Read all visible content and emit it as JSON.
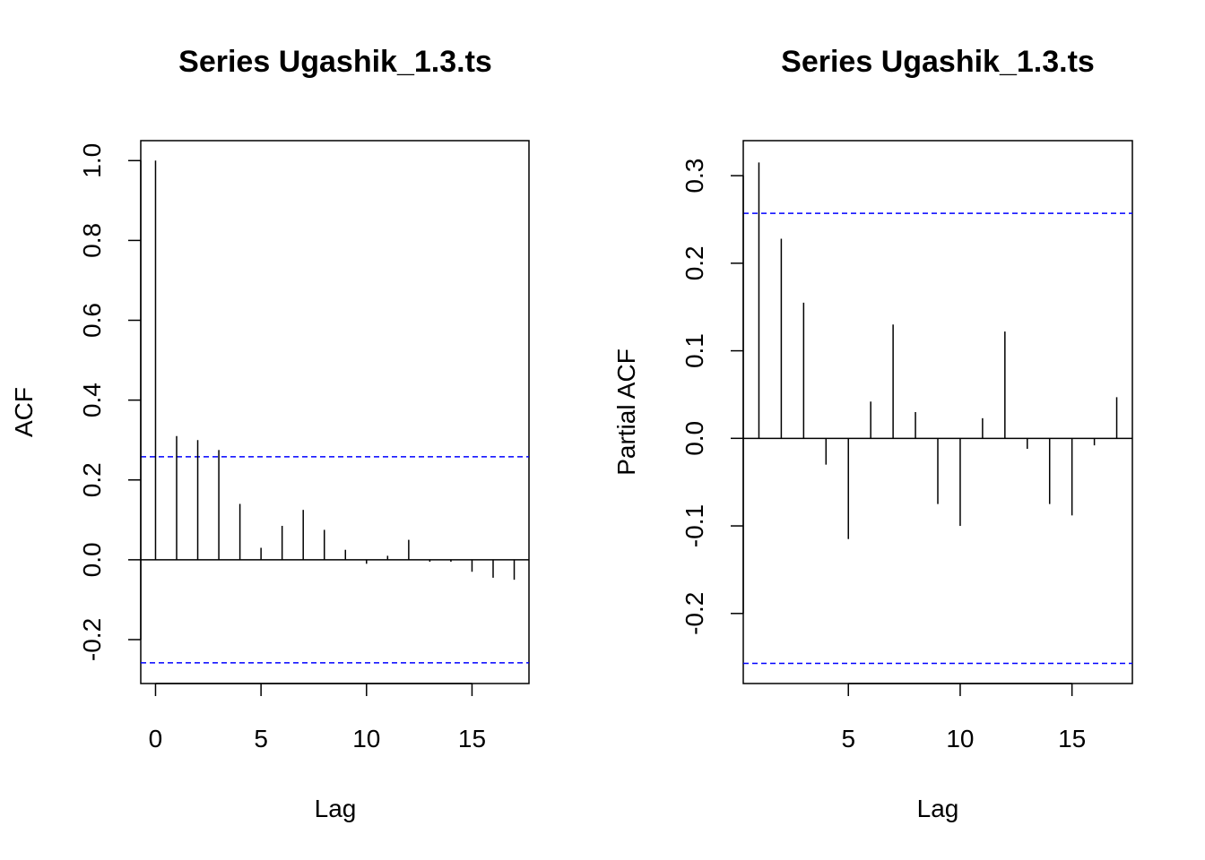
{
  "chart_data": [
    {
      "type": "bar",
      "title": "Series  Ugashik_1.3.ts",
      "xlabel": "Lag",
      "ylabel": "ACF",
      "xlim": [
        -0.7,
        17.7
      ],
      "ylim": [
        -0.31,
        1.05
      ],
      "xticks": [
        0,
        5,
        10,
        15
      ],
      "xtick_labels": [
        "0",
        "5",
        "10",
        "15"
      ],
      "yticks": [
        -0.2,
        0.0,
        0.2,
        0.4,
        0.6,
        0.8,
        1.0
      ],
      "ytick_labels": [
        "-0.2",
        "0.0",
        "0.2",
        "0.4",
        "0.6",
        "0.8",
        "1.0"
      ],
      "lags": [
        0,
        1,
        2,
        3,
        4,
        5,
        6,
        7,
        8,
        9,
        10,
        11,
        12,
        13,
        14,
        15,
        16,
        17
      ],
      "values": [
        1.0,
        0.31,
        0.3,
        0.275,
        0.14,
        0.03,
        0.085,
        0.125,
        0.075,
        0.025,
        -0.01,
        0.01,
        0.05,
        -0.005,
        -0.005,
        -0.03,
        -0.045,
        -0.05
      ],
      "confidence_bounds": [
        0.258,
        -0.258
      ],
      "bound_color": "#0000ff",
      "grid": false
    },
    {
      "type": "bar",
      "title": "Series  Ugashik_1.3.ts",
      "xlabel": "Lag",
      "ylabel": "Partial ACF",
      "xlim": [
        0.3,
        17.7
      ],
      "ylim": [
        -0.28,
        0.34
      ],
      "xticks": [
        5,
        10,
        15
      ],
      "xtick_labels": [
        "5",
        "10",
        "15"
      ],
      "yticks": [
        -0.2,
        -0.1,
        0.0,
        0.1,
        0.2,
        0.3
      ],
      "ytick_labels": [
        "-0.2",
        "-0.1",
        "0.0",
        "0.1",
        "0.2",
        "0.3"
      ],
      "lags": [
        1,
        2,
        3,
        4,
        5,
        6,
        7,
        8,
        9,
        10,
        11,
        12,
        13,
        14,
        15,
        16,
        17
      ],
      "values": [
        0.315,
        0.228,
        0.155,
        -0.03,
        -0.115,
        0.042,
        0.13,
        0.03,
        -0.075,
        -0.1,
        0.023,
        0.122,
        -0.012,
        -0.075,
        -0.088,
        -0.008,
        0.047
      ],
      "confidence_bounds": [
        0.257,
        -0.257
      ],
      "bound_color": "#0000ff",
      "grid": false
    }
  ]
}
